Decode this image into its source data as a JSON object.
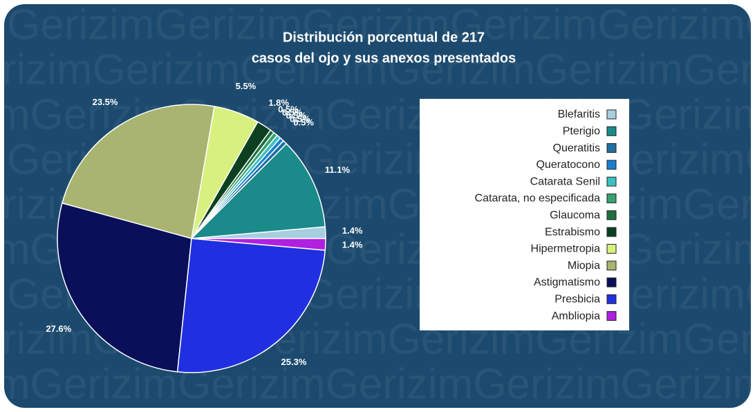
{
  "chart_data": {
    "type": "pie",
    "title": [
      "Distribución porcentual de 217",
      "casos del ojo y sus anexos presentados"
    ],
    "watermark": "Gerizim",
    "categories": [
      "Blefaritis",
      "Pterigio",
      "Queratitis",
      "Queratocono",
      "Catarata Senil",
      "Catarata, no especificada",
      "Glaucoma",
      "Estrabismo",
      "Hipermetropia",
      "Miopia",
      "Astigmatismo",
      "Presbicia",
      "Ambliopia"
    ],
    "values": [
      1.4,
      11.1,
      0.5,
      0.5,
      0.5,
      0.5,
      0.5,
      1.8,
      5.5,
      23.5,
      27.6,
      25.3,
      1.4
    ],
    "value_labels": [
      "1.4%",
      "11.1%",
      "0.5%",
      "0.5%",
      "0.5%",
      "0.5%",
      "0.5%",
      "1.8%",
      "5.5%",
      "23.5%",
      "27.6%",
      "25.3%",
      "1.4%"
    ],
    "colors": [
      "#a6cde0",
      "#1a8a8a",
      "#1f6fa0",
      "#1a7fd0",
      "#3cc0c0",
      "#3aa070",
      "#1e6e40",
      "#0d4020",
      "#d8f080",
      "#a8b470",
      "#0a0f5a",
      "#2030e0",
      "#b020e0"
    ],
    "legend": "right"
  }
}
